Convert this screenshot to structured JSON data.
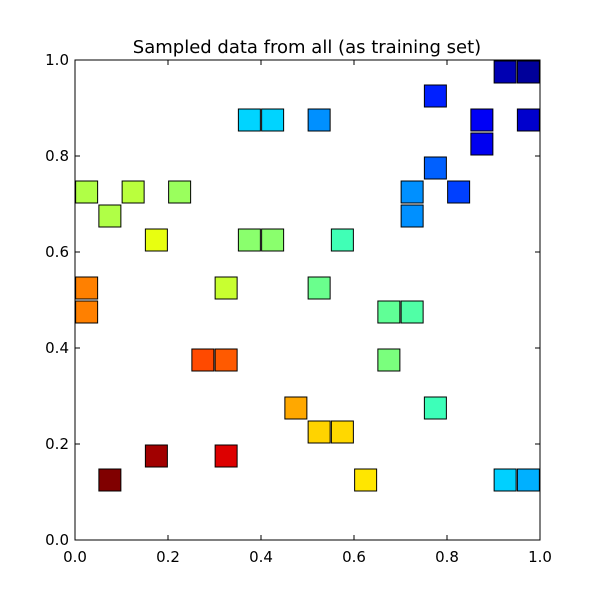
{
  "chart_data": {
    "type": "scatter",
    "title": "Sampled data from all (as training set)",
    "xlabel": "",
    "ylabel": "",
    "xlim": [
      0.0,
      1.0
    ],
    "ylim": [
      0.0,
      1.0
    ],
    "x_ticks": [
      "0.0",
      "0.2",
      "0.4",
      "0.6",
      "0.8",
      "1.0"
    ],
    "y_ticks": [
      "0.0",
      "0.2",
      "0.4",
      "0.6",
      "0.8",
      "1.0"
    ],
    "grid": false,
    "legend": "none",
    "marker": "square",
    "colormap": "jet",
    "points": [
      {
        "x": 0.075,
        "y": 0.125,
        "color": "#800000"
      },
      {
        "x": 0.175,
        "y": 0.175,
        "color": "#a10000"
      },
      {
        "x": 0.325,
        "y": 0.175,
        "color": "#dd0000"
      },
      {
        "x": 0.275,
        "y": 0.375,
        "color": "#ff4a00"
      },
      {
        "x": 0.325,
        "y": 0.375,
        "color": "#ff5a00"
      },
      {
        "x": 0.025,
        "y": 0.525,
        "color": "#ff8000"
      },
      {
        "x": 0.025,
        "y": 0.475,
        "color": "#ff8000"
      },
      {
        "x": 0.475,
        "y": 0.275,
        "color": "#ffa800"
      },
      {
        "x": 0.525,
        "y": 0.225,
        "color": "#ffd300"
      },
      {
        "x": 0.575,
        "y": 0.225,
        "color": "#ffd800"
      },
      {
        "x": 0.625,
        "y": 0.125,
        "color": "#ffe600"
      },
      {
        "x": 0.175,
        "y": 0.625,
        "color": "#e8ff10"
      },
      {
        "x": 0.325,
        "y": 0.525,
        "color": "#c8ff30"
      },
      {
        "x": 0.125,
        "y": 0.725,
        "color": "#baff3d"
      },
      {
        "x": 0.025,
        "y": 0.725,
        "color": "#b0ff46"
      },
      {
        "x": 0.075,
        "y": 0.675,
        "color": "#b0ff46"
      },
      {
        "x": 0.225,
        "y": 0.725,
        "color": "#9aff5d"
      },
      {
        "x": 0.375,
        "y": 0.625,
        "color": "#8aff6d"
      },
      {
        "x": 0.425,
        "y": 0.625,
        "color": "#8aff6d"
      },
      {
        "x": 0.675,
        "y": 0.375,
        "color": "#7aff7d"
      },
      {
        "x": 0.525,
        "y": 0.525,
        "color": "#6aff8d"
      },
      {
        "x": 0.675,
        "y": 0.475,
        "color": "#60ff96"
      },
      {
        "x": 0.725,
        "y": 0.475,
        "color": "#50ffa6"
      },
      {
        "x": 0.575,
        "y": 0.625,
        "color": "#40ffb6"
      },
      {
        "x": 0.775,
        "y": 0.275,
        "color": "#3dffb9"
      },
      {
        "x": 0.375,
        "y": 0.875,
        "color": "#00d4ff"
      },
      {
        "x": 0.425,
        "y": 0.875,
        "color": "#00d4ff"
      },
      {
        "x": 0.925,
        "y": 0.125,
        "color": "#00d0ff"
      },
      {
        "x": 0.975,
        "y": 0.125,
        "color": "#00b0ff"
      },
      {
        "x": 0.525,
        "y": 0.875,
        "color": "#0090ff"
      },
      {
        "x": 0.725,
        "y": 0.725,
        "color": "#0090ff"
      },
      {
        "x": 0.725,
        "y": 0.675,
        "color": "#0090ff"
      },
      {
        "x": 0.775,
        "y": 0.775,
        "color": "#0060ff"
      },
      {
        "x": 0.825,
        "y": 0.725,
        "color": "#0040ff"
      },
      {
        "x": 0.775,
        "y": 0.925,
        "color": "#0020ff"
      },
      {
        "x": 0.875,
        "y": 0.875,
        "color": "#0000f6"
      },
      {
        "x": 0.875,
        "y": 0.825,
        "color": "#0000f0"
      },
      {
        "x": 0.975,
        "y": 0.875,
        "color": "#0000cd"
      },
      {
        "x": 0.925,
        "y": 0.975,
        "color": "#0000b2"
      },
      {
        "x": 0.975,
        "y": 0.975,
        "color": "#00009a"
      }
    ]
  }
}
